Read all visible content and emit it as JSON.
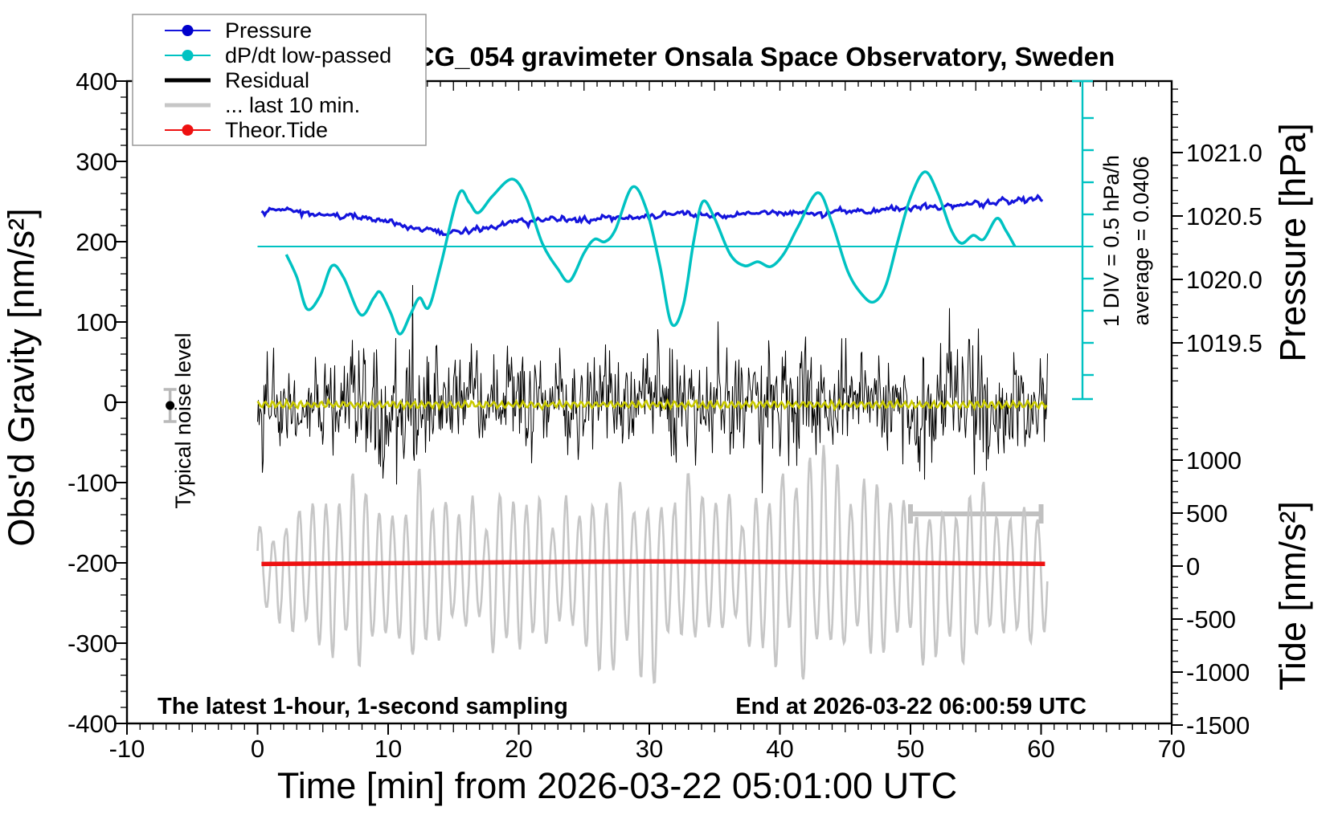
{
  "title": "SCG_054 gravimeter Onsala Space Observatory, Sweden",
  "annotations": {
    "noise_label": "Typical noise level",
    "div_label": "1 DIV = 0.5 hPa/h",
    "average_label": "average = 0.0406",
    "sampling_note": "The latest 1-hour, 1-second sampling",
    "end_note": "End at 2026-03-22 06:00:59 UTC"
  },
  "legend": [
    {
      "label": "Pressure",
      "color": "#1414dc",
      "dot": "#0000cc",
      "line_width": 2
    },
    {
      "label": "dP/dt low-passed",
      "color": "#00c2c2",
      "dot": "#00c2c2",
      "line_width": 2
    },
    {
      "label": "Residual",
      "color": "#000000",
      "dot": null,
      "line_width": 5
    },
    {
      "label": "... last 10 min.",
      "color": "#c6c6c6",
      "dot": null,
      "line_width": 5
    },
    {
      "label": "Theor.Tide",
      "color": "#ee1111",
      "dot": "#ee1111",
      "line_width": 2
    }
  ],
  "chart_data": {
    "type": "line",
    "x_axis": {
      "label": "Time [min] from 2026-03-22 05:01:00 UTC",
      "range": [
        -10,
        70
      ],
      "major_ticks": [
        -10,
        0,
        10,
        20,
        30,
        40,
        50,
        60,
        70
      ],
      "minor_step": 1
    },
    "y_left": {
      "label": "Obs'd Gravity [nm/s²]",
      "range": [
        -400,
        400
      ],
      "major_ticks": [
        400,
        300,
        200,
        100,
        0,
        -100,
        -200,
        -300,
        -400
      ],
      "minor_step": 20
    },
    "y_pressure": {
      "label": "Pressure [hPa]",
      "ticks": [
        1021.0,
        1020.5,
        1020.0,
        1019.5
      ],
      "minor_step": 0.1
    },
    "y_tide": {
      "label": "Tide [nm/s²]",
      "ticks": [
        1000,
        500,
        0,
        -500,
        -1000,
        -1500
      ],
      "minor_step": 100
    },
    "series": {
      "pressure": {
        "name": "Pressure",
        "color": "#1414dc",
        "units": "hPa",
        "points": [
          [
            0.3,
            1020.544
          ],
          [
            2,
            1020.538
          ],
          [
            4,
            1020.525
          ],
          [
            6,
            1020.513
          ],
          [
            8,
            1020.487
          ],
          [
            10,
            1020.456
          ],
          [
            11.5,
            1020.43
          ],
          [
            13,
            1020.392
          ],
          [
            14.3,
            1020.361
          ],
          [
            15.5,
            1020.373
          ],
          [
            17,
            1020.399
          ],
          [
            18.5,
            1020.424
          ],
          [
            20,
            1020.456
          ],
          [
            21.5,
            1020.475
          ],
          [
            23,
            1020.462
          ],
          [
            24.5,
            1020.475
          ],
          [
            26,
            1020.481
          ],
          [
            27.5,
            1020.487
          ],
          [
            29,
            1020.5
          ],
          [
            30.5,
            1020.506
          ],
          [
            32,
            1020.513
          ],
          [
            33.5,
            1020.513
          ],
          [
            35,
            1020.5
          ],
          [
            36.5,
            1020.506
          ],
          [
            38,
            1020.513
          ],
          [
            39.5,
            1020.519
          ],
          [
            41,
            1020.525
          ],
          [
            42.5,
            1020.519
          ],
          [
            44,
            1020.532
          ],
          [
            45.5,
            1020.538
          ],
          [
            47,
            1020.544
          ],
          [
            48.5,
            1020.551
          ],
          [
            50,
            1020.557
          ],
          [
            51.5,
            1020.57
          ],
          [
            53,
            1020.582
          ],
          [
            54.5,
            1020.595
          ],
          [
            56,
            1020.601
          ],
          [
            57.5,
            1020.614
          ],
          [
            58.7,
            1020.633
          ],
          [
            59.5,
            1020.639
          ],
          [
            60.2,
            1020.627
          ]
        ],
        "noise_sigma_hpa": 0.007
      },
      "dpdt": {
        "name": "dP/dt low-passed",
        "color": "#00c2c2",
        "units": "hPa/h",
        "div_value": 0.5,
        "average": 0.0406,
        "zero_line": {
          "t_start": 0,
          "t_end": 64
        },
        "points": [
          [
            2.2,
            -0.125
          ],
          [
            3.0,
            -0.475
          ],
          [
            3.8,
            -0.975
          ],
          [
            4.8,
            -0.763
          ],
          [
            5.7,
            -0.3
          ],
          [
            6.6,
            -0.488
          ],
          [
            7.9,
            -1.063
          ],
          [
            8.9,
            -0.8
          ],
          [
            9.4,
            -0.713
          ],
          [
            10.2,
            -1.038
          ],
          [
            10.9,
            -1.363
          ],
          [
            11.7,
            -1.063
          ],
          [
            12.4,
            -0.8
          ],
          [
            13.1,
            -0.95
          ],
          [
            14.0,
            -0.313
          ],
          [
            15.4,
            0.813
          ],
          [
            16.2,
            0.688
          ],
          [
            16.9,
            0.525
          ],
          [
            18.0,
            0.788
          ],
          [
            19.5,
            1.05
          ],
          [
            20.6,
            0.75
          ],
          [
            21.8,
            0.05
          ],
          [
            23.0,
            -0.35
          ],
          [
            23.9,
            -0.538
          ],
          [
            25.0,
            -0.1
          ],
          [
            25.8,
            0.113
          ],
          [
            26.6,
            0.075
          ],
          [
            27.4,
            0.263
          ],
          [
            28.7,
            0.925
          ],
          [
            29.8,
            0.563
          ],
          [
            30.8,
            -0.288
          ],
          [
            31.7,
            -1.2
          ],
          [
            32.6,
            -0.913
          ],
          [
            33.4,
            0.088
          ],
          [
            34.1,
            0.7
          ],
          [
            35.0,
            0.438
          ],
          [
            36.2,
            -0.125
          ],
          [
            37.3,
            -0.3
          ],
          [
            38.3,
            -0.238
          ],
          [
            39.3,
            -0.313
          ],
          [
            40.3,
            -0.113
          ],
          [
            41.4,
            0.313
          ],
          [
            42.9,
            0.838
          ],
          [
            44.0,
            0.363
          ],
          [
            45.2,
            -0.388
          ],
          [
            46.3,
            -0.75
          ],
          [
            47.2,
            -0.863
          ],
          [
            48.1,
            -0.613
          ],
          [
            49.0,
            0.063
          ],
          [
            50.0,
            0.763
          ],
          [
            51.1,
            1.163
          ],
          [
            52.1,
            0.825
          ],
          [
            53.1,
            0.263
          ],
          [
            53.9,
            0.05
          ],
          [
            54.8,
            0.175
          ],
          [
            55.6,
            0.113
          ],
          [
            56.6,
            0.438
          ],
          [
            57.3,
            0.25
          ],
          [
            58.0,
            0.0
          ]
        ]
      },
      "residual": {
        "name": "Residual",
        "color": "#000000",
        "units": "nm/s2",
        "t_range": [
          0,
          60.5
        ],
        "center_nms2": -2,
        "sigma_nms2": 26,
        "clip_nms2": 148,
        "seed": 42,
        "envelope": [
          [
            0,
            0.9
          ],
          [
            1.8,
            1.25
          ],
          [
            3,
            0.95
          ],
          [
            5,
            0.9
          ],
          [
            8,
            1.45
          ],
          [
            10.5,
            1.8
          ],
          [
            12,
            1.4
          ],
          [
            13.5,
            1.5
          ],
          [
            15,
            1.0
          ],
          [
            17,
            0.95
          ],
          [
            19.5,
            1.3
          ],
          [
            21,
            1.1
          ],
          [
            24,
            1.25
          ],
          [
            26,
            1.0
          ],
          [
            28,
            1.5
          ],
          [
            30,
            1.1
          ],
          [
            31.8,
            1.7
          ],
          [
            33,
            1.1
          ],
          [
            36,
            1.45
          ],
          [
            38,
            1.1
          ],
          [
            39.5,
            1.25
          ],
          [
            41,
            1.2
          ],
          [
            43,
            1.5
          ],
          [
            45,
            1.4
          ],
          [
            47,
            1.0
          ],
          [
            49,
            1.35
          ],
          [
            51,
            1.3
          ],
          [
            53,
            1.4
          ],
          [
            55,
            1.8
          ],
          [
            56.5,
            1.2
          ],
          [
            57.5,
            1.35
          ],
          [
            59,
            1.1
          ],
          [
            60.5,
            1.05
          ]
        ]
      },
      "residual_lowpass": {
        "name": "Residual low-passed",
        "color": "#c9c900",
        "units": "nm/s2",
        "t_range": [
          0,
          60.5
        ],
        "center_nms2": -3,
        "amplitude_nms2": 3.5,
        "period_min": 0.55,
        "seed": 11
      },
      "last10": {
        "name": "... last 10 min.",
        "color": "#c6c6c6",
        "units": "nm/s2",
        "t_range": [
          0,
          60.5
        ],
        "center_nms2": -211,
        "period_min": 1.05,
        "seed": 7,
        "envelope_nms2": [
          [
            0,
            70
          ],
          [
            3,
            80
          ],
          [
            5,
            95
          ],
          [
            7,
            120
          ],
          [
            9,
            130
          ],
          [
            11,
            140
          ],
          [
            13,
            120
          ],
          [
            15,
            90
          ],
          [
            17,
            95
          ],
          [
            19,
            110
          ],
          [
            21,
            105
          ],
          [
            23,
            100
          ],
          [
            25,
            110
          ],
          [
            27,
            150
          ],
          [
            29,
            145
          ],
          [
            31,
            130
          ],
          [
            33,
            120
          ],
          [
            35,
            100
          ],
          [
            37,
            108
          ],
          [
            39,
            112
          ],
          [
            41,
            140
          ],
          [
            43,
            150
          ],
          [
            45,
            150
          ],
          [
            47,
            115
          ],
          [
            49,
            110
          ],
          [
            51,
            125
          ],
          [
            53,
            115
          ],
          [
            55,
            112
          ],
          [
            57,
            105
          ],
          [
            59,
            92
          ],
          [
            60.5,
            85
          ]
        ]
      },
      "tide": {
        "name": "Theor.Tide",
        "color": "#ee1111",
        "units": "nm/s2 (tide axis)",
        "points": [
          [
            0.3,
            20
          ],
          [
            10,
            27
          ],
          [
            20,
            36
          ],
          [
            30,
            43
          ],
          [
            40,
            39
          ],
          [
            50,
            30
          ],
          [
            60.3,
            21
          ]
        ]
      },
      "noise_marker": {
        "t": -6.7,
        "gravity_nms2": -4,
        "error_nms2": 20
      },
      "last10_bracket": {
        "t_start": 50,
        "t_end": 60,
        "gravity_nms2": -139
      }
    }
  }
}
